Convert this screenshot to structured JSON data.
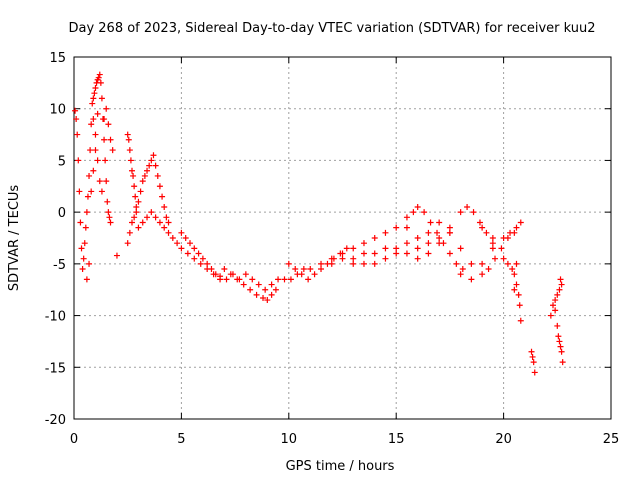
{
  "chart_data": {
    "type": "scatter",
    "title": "Day 268 of 2023, Sidereal Day-to-day VTEC variation (SDTVAR) for receiver kuu2",
    "xlabel": "GPS time / hours",
    "ylabel": "SDTVAR / TECUs",
    "xlim": [
      0,
      25
    ],
    "ylim": [
      -20,
      15
    ],
    "xticks": [
      "0",
      "5",
      "10",
      "15",
      "20",
      "25"
    ],
    "yticks": [
      "15",
      "10",
      "5",
      "0",
      "-5",
      "-10",
      "-15",
      "-20"
    ],
    "grid": true,
    "marker": "+",
    "color": "#ff0000",
    "series": [
      {
        "name": "SDTVAR",
        "values": [
          [
            0.05,
            9.8
          ],
          [
            0.1,
            9.0
          ],
          [
            0.15,
            7.5
          ],
          [
            0.2,
            5.0
          ],
          [
            0.25,
            2.0
          ],
          [
            0.3,
            -1.0
          ],
          [
            0.35,
            -3.5
          ],
          [
            0.4,
            -5.5
          ],
          [
            0.45,
            -4.5
          ],
          [
            0.5,
            -3.0
          ],
          [
            0.55,
            -1.5
          ],
          [
            0.6,
            0.0
          ],
          [
            0.65,
            1.5
          ],
          [
            0.7,
            3.5
          ],
          [
            0.75,
            6.0
          ],
          [
            0.8,
            8.5
          ],
          [
            0.85,
            10.5
          ],
          [
            0.9,
            11.0
          ],
          [
            0.95,
            11.5
          ],
          [
            1.0,
            12.0
          ],
          [
            1.05,
            12.5
          ],
          [
            1.1,
            12.8
          ],
          [
            1.15,
            13.0
          ],
          [
            1.2,
            13.3
          ],
          [
            1.25,
            12.5
          ],
          [
            1.3,
            11.0
          ],
          [
            1.35,
            9.0
          ],
          [
            1.4,
            7.0
          ],
          [
            1.45,
            5.0
          ],
          [
            1.5,
            3.0
          ],
          [
            1.55,
            1.0
          ],
          [
            1.6,
            0.0
          ],
          [
            1.65,
            -0.5
          ],
          [
            1.7,
            -1.0
          ],
          [
            0.6,
            -6.5
          ],
          [
            0.7,
            -5.0
          ],
          [
            0.8,
            2.0
          ],
          [
            0.9,
            4.0
          ],
          [
            1.0,
            6.0
          ],
          [
            1.1,
            5.0
          ],
          [
            1.2,
            3.0
          ],
          [
            1.3,
            2.0
          ],
          [
            1.4,
            9.0
          ],
          [
            1.5,
            10.0
          ],
          [
            1.6,
            8.5
          ],
          [
            1.7,
            7.0
          ],
          [
            1.8,
            6.0
          ],
          [
            0.9,
            9.0
          ],
          [
            1.0,
            7.5
          ],
          [
            1.1,
            9.5
          ],
          [
            2.0,
            -4.2
          ],
          [
            2.5,
            7.5
          ],
          [
            2.55,
            7.0
          ],
          [
            2.6,
            6.0
          ],
          [
            2.65,
            5.0
          ],
          [
            2.7,
            4.0
          ],
          [
            2.75,
            3.5
          ],
          [
            2.8,
            2.5
          ],
          [
            2.85,
            1.5
          ],
          [
            2.9,
            0.5
          ],
          [
            2.5,
            -3.0
          ],
          [
            2.6,
            -2.0
          ],
          [
            2.7,
            -1.0
          ],
          [
            2.8,
            -0.5
          ],
          [
            2.9,
            0.0
          ],
          [
            3.0,
            1.0
          ],
          [
            3.1,
            2.0
          ],
          [
            3.2,
            3.0
          ],
          [
            3.3,
            3.5
          ],
          [
            3.4,
            4.0
          ],
          [
            3.5,
            4.5
          ],
          [
            3.6,
            5.0
          ],
          [
            3.7,
            5.5
          ],
          [
            3.8,
            4.5
          ],
          [
            3.9,
            3.5
          ],
          [
            4.0,
            2.5
          ],
          [
            4.1,
            1.5
          ],
          [
            4.2,
            0.5
          ],
          [
            4.3,
            -0.5
          ],
          [
            4.4,
            -1.0
          ],
          [
            3.0,
            -1.5
          ],
          [
            3.2,
            -1.0
          ],
          [
            3.4,
            -0.5
          ],
          [
            3.6,
            0.0
          ],
          [
            3.8,
            -0.5
          ],
          [
            4.0,
            -1.0
          ],
          [
            4.2,
            -1.5
          ],
          [
            4.4,
            -2.0
          ],
          [
            4.6,
            -2.5
          ],
          [
            4.8,
            -3.0
          ],
          [
            5.0,
            -2.0
          ],
          [
            5.2,
            -2.5
          ],
          [
            5.4,
            -3.0
          ],
          [
            5.6,
            -3.5
          ],
          [
            5.8,
            -4.0
          ],
          [
            6.0,
            -4.5
          ],
          [
            6.2,
            -5.0
          ],
          [
            6.4,
            -5.5
          ],
          [
            6.6,
            -6.0
          ],
          [
            6.8,
            -6.2
          ],
          [
            5.0,
            -3.5
          ],
          [
            5.3,
            -4.0
          ],
          [
            5.6,
            -4.5
          ],
          [
            5.9,
            -5.0
          ],
          [
            6.2,
            -5.5
          ],
          [
            6.5,
            -6.0
          ],
          [
            6.8,
            -6.5
          ],
          [
            7.1,
            -6.5
          ],
          [
            7.4,
            -6.0
          ],
          [
            7.7,
            -6.5
          ],
          [
            7.0,
            -5.5
          ],
          [
            7.3,
            -6.0
          ],
          [
            7.6,
            -6.5
          ],
          [
            7.9,
            -7.0
          ],
          [
            8.2,
            -7.5
          ],
          [
            8.5,
            -8.0
          ],
          [
            8.8,
            -8.3
          ],
          [
            9.0,
            -8.5
          ],
          [
            9.2,
            -8.0
          ],
          [
            9.4,
            -7.5
          ],
          [
            8.0,
            -6.0
          ],
          [
            8.3,
            -6.5
          ],
          [
            8.6,
            -7.0
          ],
          [
            8.9,
            -7.5
          ],
          [
            9.2,
            -7.0
          ],
          [
            9.5,
            -6.5
          ],
          [
            9.8,
            -6.5
          ],
          [
            10.1,
            -6.5
          ],
          [
            10.4,
            -6.0
          ],
          [
            10.7,
            -5.5
          ],
          [
            10.0,
            -5.0
          ],
          [
            10.3,
            -5.5
          ],
          [
            10.6,
            -6.0
          ],
          [
            10.9,
            -6.5
          ],
          [
            11.2,
            -6.0
          ],
          [
            11.5,
            -5.5
          ],
          [
            11.8,
            -5.0
          ],
          [
            12.1,
            -4.5
          ],
          [
            12.4,
            -4.0
          ],
          [
            12.7,
            -3.5
          ],
          [
            11.0,
            -5.5
          ],
          [
            11.5,
            -5.0
          ],
          [
            12.0,
            -4.5
          ],
          [
            12.5,
            -4.0
          ],
          [
            13.0,
            -3.5
          ],
          [
            13.5,
            -3.0
          ],
          [
            14.0,
            -2.5
          ],
          [
            14.5,
            -2.0
          ],
          [
            15.0,
            -1.5
          ],
          [
            15.5,
            -1.5
          ],
          [
            12.0,
            -5.0
          ],
          [
            12.5,
            -4.5
          ],
          [
            13.0,
            -4.5
          ],
          [
            13.5,
            -4.0
          ],
          [
            14.0,
            -4.0
          ],
          [
            14.5,
            -3.5
          ],
          [
            15.0,
            -3.5
          ],
          [
            15.5,
            -3.0
          ],
          [
            16.0,
            -2.5
          ],
          [
            16.5,
            -2.0
          ],
          [
            13.0,
            -5.0
          ],
          [
            13.5,
            -5.0
          ],
          [
            14.0,
            -5.0
          ],
          [
            14.5,
            -4.5
          ],
          [
            15.0,
            -4.0
          ],
          [
            15.5,
            -4.0
          ],
          [
            16.0,
            -3.5
          ],
          [
            16.5,
            -3.0
          ],
          [
            17.0,
            -2.5
          ],
          [
            17.5,
            -2.0
          ],
          [
            15.5,
            -0.5
          ],
          [
            15.8,
            0.0
          ],
          [
            16.0,
            0.5
          ],
          [
            16.3,
            0.0
          ],
          [
            16.6,
            -1.0
          ],
          [
            16.9,
            -2.0
          ],
          [
            17.2,
            -3.0
          ],
          [
            17.5,
            -4.0
          ],
          [
            17.8,
            -5.0
          ],
          [
            18.1,
            -5.5
          ],
          [
            16.0,
            -4.5
          ],
          [
            16.5,
            -4.0
          ],
          [
            17.0,
            -3.0
          ],
          [
            17.5,
            -1.5
          ],
          [
            18.0,
            0.0
          ],
          [
            18.3,
            0.5
          ],
          [
            18.6,
            0.0
          ],
          [
            18.9,
            -1.0
          ],
          [
            19.2,
            -2.0
          ],
          [
            19.5,
            -3.0
          ],
          [
            17.0,
            -1.0
          ],
          [
            17.5,
            -2.0
          ],
          [
            18.0,
            -3.5
          ],
          [
            18.5,
            -5.0
          ],
          [
            19.0,
            -6.0
          ],
          [
            19.3,
            -5.5
          ],
          [
            19.6,
            -4.5
          ],
          [
            19.9,
            -3.5
          ],
          [
            20.2,
            -2.5
          ],
          [
            20.5,
            -2.0
          ],
          [
            18.0,
            -6.0
          ],
          [
            18.5,
            -6.5
          ],
          [
            19.0,
            -5.0
          ],
          [
            19.5,
            -3.5
          ],
          [
            20.0,
            -2.5
          ],
          [
            20.3,
            -2.0
          ],
          [
            20.6,
            -1.5
          ],
          [
            20.8,
            -1.0
          ],
          [
            19.0,
            -1.5
          ],
          [
            19.5,
            -2.5
          ],
          [
            20.0,
            -4.5
          ],
          [
            20.2,
            -5.0
          ],
          [
            20.4,
            -5.5
          ],
          [
            20.5,
            -6.0
          ],
          [
            20.6,
            -7.0
          ],
          [
            20.7,
            -8.0
          ],
          [
            20.75,
            -9.0
          ],
          [
            20.8,
            -10.5
          ],
          [
            20.5,
            -7.5
          ],
          [
            20.6,
            -5.0
          ],
          [
            21.3,
            -13.5
          ],
          [
            21.35,
            -14.0
          ],
          [
            21.4,
            -14.5
          ],
          [
            21.45,
            -15.5
          ],
          [
            22.2,
            -10.0
          ],
          [
            22.3,
            -9.0
          ],
          [
            22.4,
            -8.5
          ],
          [
            22.5,
            -8.0
          ],
          [
            22.6,
            -7.5
          ],
          [
            22.7,
            -7.0
          ],
          [
            22.65,
            -6.5
          ],
          [
            22.4,
            -9.5
          ],
          [
            22.5,
            -11.0
          ],
          [
            22.55,
            -12.0
          ],
          [
            22.6,
            -12.5
          ],
          [
            22.65,
            -13.0
          ],
          [
            22.7,
            -13.5
          ],
          [
            22.75,
            -14.5
          ]
        ]
      }
    ]
  }
}
